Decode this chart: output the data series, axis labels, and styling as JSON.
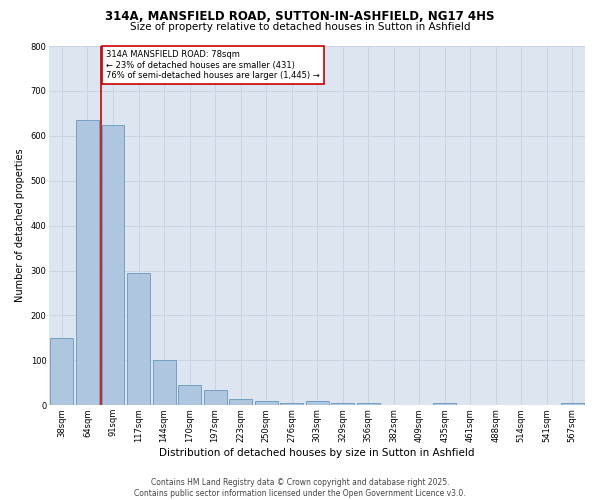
{
  "title1": "314A, MANSFIELD ROAD, SUTTON-IN-ASHFIELD, NG17 4HS",
  "title2": "Size of property relative to detached houses in Sutton in Ashfield",
  "xlabel": "Distribution of detached houses by size in Sutton in Ashfield",
  "ylabel": "Number of detached properties",
  "categories": [
    "38sqm",
    "64sqm",
    "91sqm",
    "117sqm",
    "144sqm",
    "170sqm",
    "197sqm",
    "223sqm",
    "250sqm",
    "276sqm",
    "303sqm",
    "329sqm",
    "356sqm",
    "382sqm",
    "409sqm",
    "435sqm",
    "461sqm",
    "488sqm",
    "514sqm",
    "541sqm",
    "567sqm"
  ],
  "values": [
    150,
    635,
    625,
    295,
    100,
    45,
    35,
    15,
    10,
    5,
    10,
    5,
    5,
    0,
    0,
    5,
    0,
    0,
    0,
    0,
    5
  ],
  "bar_color": "#aec6e0",
  "bar_edge_color": "#6699bb",
  "grid_color": "#c8d4e4",
  "bg_color": "#dde6f0",
  "vline_color": "#cc0000",
  "annotation_text": "314A MANSFIELD ROAD: 78sqm\n← 23% of detached houses are smaller (431)\n76% of semi-detached houses are larger (1,445) →",
  "annotation_box_color": "#cc0000",
  "footer1": "Contains HM Land Registry data © Crown copyright and database right 2025.",
  "footer2": "Contains public sector information licensed under the Open Government Licence v3.0.",
  "ylim": [
    0,
    800
  ],
  "yticks": [
    0,
    100,
    200,
    300,
    400,
    500,
    600,
    700,
    800
  ],
  "title1_fontsize": 8.5,
  "title2_fontsize": 7.5,
  "xlabel_fontsize": 7.5,
  "ylabel_fontsize": 7.0,
  "tick_fontsize": 6.0,
  "annotation_fontsize": 6.0,
  "footer_fontsize": 5.5
}
